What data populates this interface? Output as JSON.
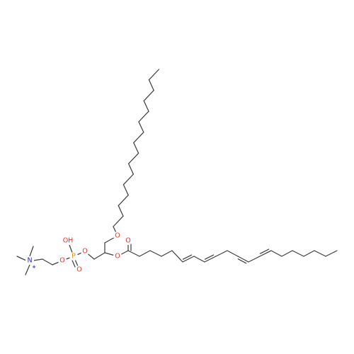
{
  "colors": {
    "bond": "#404040",
    "carbon": "#404040",
    "oxygen": "#e8332b",
    "phosphorus": "#e28e17",
    "nitrogen": "#2a2ab0",
    "background": "#ffffff"
  },
  "atoms": {
    "ether_oxygen": "O",
    "ester_oxygen": "O",
    "carbonyl_oxygen": "O",
    "phosphate_ester_oxygen_glycerol": "O",
    "phosphate_hydroxyl": "OH",
    "phosphorus": "P",
    "phosphate_double_oxygen": "O",
    "phosphate_ester_oxygen_choline": "O",
    "ammonium_nitrogen": "N",
    "ammonium_charge": "+"
  }
}
